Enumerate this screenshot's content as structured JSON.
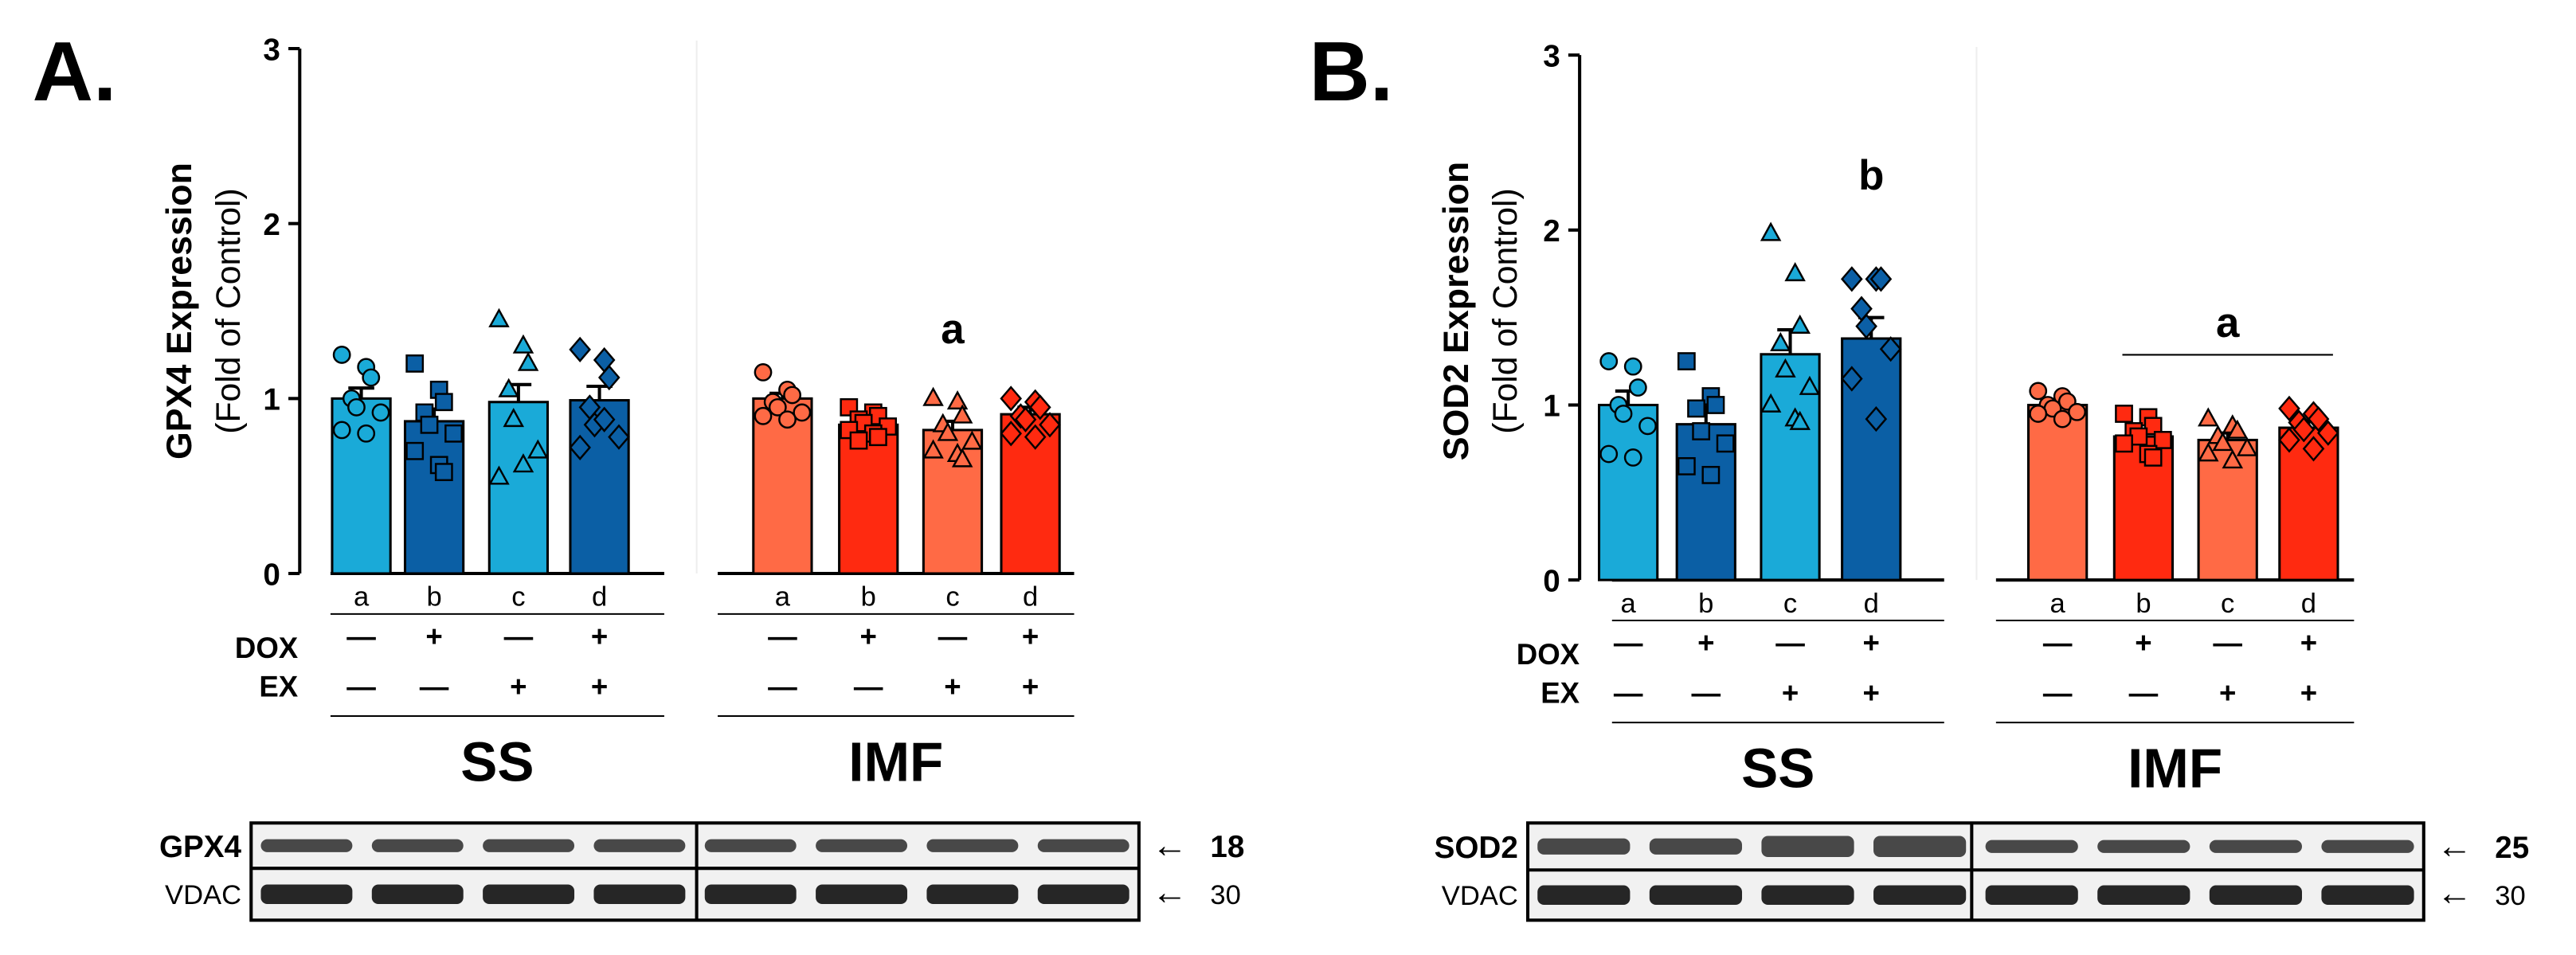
{
  "chart_data": [
    {
      "type": "bar",
      "panel_label": "A.",
      "title": "",
      "ylabel_main": "GPX4 Expression",
      "ylabel_sub": "(Fold of Control)",
      "ylim": [
        0,
        3
      ],
      "yticks": [
        "0",
        "1",
        "2",
        "3"
      ],
      "categories": [
        "a",
        "b",
        "c",
        "d"
      ],
      "row_labels": [
        "DOX",
        "EX"
      ],
      "dox_signs": [
        "—",
        "+",
        "—",
        "+"
      ],
      "ex_signs": [
        "—",
        "—",
        "+",
        "+"
      ],
      "series": [
        {
          "name": "SS",
          "values": [
            1.0,
            0.87,
            0.98,
            0.99
          ],
          "errors": [
            0.06,
            0.07,
            0.1,
            0.08
          ],
          "points": [
            [
              1.25,
              1.18,
              1.12,
              1.0,
              0.95,
              0.92,
              0.82,
              0.8
            ],
            [
              1.2,
              1.05,
              0.98,
              0.92,
              0.85,
              0.8,
              0.7,
              0.62,
              0.58
            ],
            [
              1.45,
              1.3,
              1.2,
              1.05,
              0.88,
              0.7,
              0.55,
              0.62
            ],
            [
              1.28,
              1.22,
              1.12,
              0.95,
              0.85,
              0.78,
              0.72,
              0.88
            ]
          ],
          "annotation": ""
        },
        {
          "name": "IMF",
          "values": [
            1.0,
            0.85,
            0.82,
            0.91
          ],
          "errors": [
            0.03,
            0.03,
            0.05,
            0.04
          ],
          "points": [
            [
              1.15,
              1.05,
              1.02,
              0.98,
              0.95,
              0.92,
              0.9,
              0.88
            ],
            [
              0.95,
              0.92,
              0.9,
              0.88,
              0.86,
              0.84,
              0.82,
              0.8,
              0.78,
              0.76
            ],
            [
              1.0,
              0.98,
              0.9,
              0.85,
              0.8,
              0.75,
              0.7,
              0.68,
              0.65
            ],
            [
              1.0,
              0.98,
              0.95,
              0.9,
              0.88,
              0.85,
              0.8,
              0.78
            ]
          ],
          "annotation": "a"
        }
      ],
      "blot": {
        "protein": "GPX4",
        "loading": "VDAC",
        "protein_kda": "18",
        "loading_kda": "30"
      }
    },
    {
      "type": "bar",
      "panel_label": "B.",
      "title": "",
      "ylabel_main": "SOD2 Expression",
      "ylabel_sub": "(Fold of Control)",
      "ylim": [
        0,
        3
      ],
      "yticks": [
        "0",
        "1",
        "2",
        "3"
      ],
      "categories": [
        "a",
        "b",
        "c",
        "d"
      ],
      "row_labels": [
        "DOX",
        "EX"
      ],
      "dox_signs": [
        "—",
        "+",
        "—",
        "+"
      ],
      "ex_signs": [
        "—",
        "—",
        "+",
        "+"
      ],
      "series": [
        {
          "name": "SS",
          "values": [
            1.0,
            0.89,
            1.29,
            1.38
          ],
          "errors": [
            0.08,
            0.1,
            0.14,
            0.12
          ],
          "points": [
            [
              1.25,
              1.22,
              1.1,
              1.0,
              0.95,
              0.88,
              0.72,
              0.7
            ],
            [
              1.25,
              1.05,
              1.0,
              0.98,
              0.85,
              0.78,
              0.65,
              0.6
            ],
            [
              1.98,
              1.75,
              1.45,
              1.35,
              1.2,
              1.1,
              1.0,
              0.92,
              0.9
            ],
            [
              1.72,
              1.72,
              1.72,
              1.55,
              1.45,
              1.32,
              1.15,
              0.92
            ]
          ],
          "annotation": "b"
        },
        {
          "name": "IMF",
          "values": [
            1.0,
            0.82,
            0.8,
            0.87
          ],
          "errors": [
            0.02,
            0.04,
            0.04,
            0.04
          ],
          "points": [
            [
              1.08,
              1.05,
              1.02,
              1.0,
              0.98,
              0.96,
              0.95,
              0.92
            ],
            [
              0.95,
              0.93,
              0.88,
              0.85,
              0.82,
              0.8,
              0.78,
              0.72,
              0.7
            ],
            [
              0.92,
              0.88,
              0.85,
              0.82,
              0.78,
              0.75,
              0.72,
              0.68
            ],
            [
              0.98,
              0.95,
              0.92,
              0.9,
              0.86,
              0.84,
              0.8,
              0.75
            ]
          ],
          "annotation": "a"
        }
      ],
      "blot": {
        "protein": "SOD2",
        "loading": "VDAC",
        "protein_kda": "25",
        "loading_kda": "30"
      }
    }
  ],
  "colors": {
    "ss_light": "#1aaad8",
    "ss_dark": "#0b5fa5",
    "imf_light": "#ff6a45",
    "imf_dark": "#ff2a10"
  }
}
